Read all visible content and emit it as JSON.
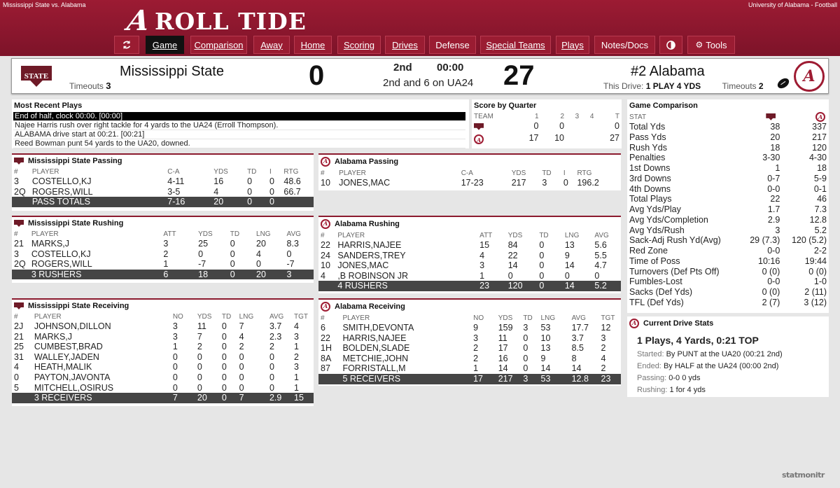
{
  "header": {
    "left_title": "Mississippi State vs. Alabama",
    "right_title": "University of Alabama - Football",
    "brand_logo": "A",
    "brand_text": "ROLL TIDE"
  },
  "nav": {
    "refresh_icon": "refresh-icon",
    "items": [
      "Game",
      "Comparison",
      "Away",
      "Home",
      "Scoring",
      "Drives",
      "Defense",
      "Special Teams",
      "Plays",
      "Notes/Docs"
    ],
    "theme_icon": "contrast-icon",
    "tools_label": "Tools",
    "active": "Game"
  },
  "scoreboard": {
    "away": {
      "name": "Mississippi State",
      "logo": "STATE",
      "timeouts_label": "Timeouts",
      "timeouts": "3",
      "score": "0"
    },
    "home": {
      "name": "#2 Alabama",
      "logo": "A",
      "timeouts_label": "Timeouts",
      "timeouts": "2",
      "score": "27"
    },
    "quarter": "2nd",
    "clock": "00:00",
    "down_distance": "2nd and 6 on UA24",
    "this_drive_label": "This Drive:",
    "this_drive": "1 PLAY 4 YDS",
    "possession_icon": "football-icon"
  },
  "recent_plays": {
    "title": "Most Recent Plays",
    "items": [
      "End of half, clock 00:00. [00:00]",
      "Najee Harris rush over right tackle for 4 yards to the UA24 (Erroll Thompson).",
      "ALABAMA drive start at 00:21. [00:21]",
      "Reed Bowman punt 54 yards to the UA20, downed."
    ]
  },
  "score_by_quarter": {
    "title": "Score by Quarter",
    "headers": [
      "TEAM",
      "1",
      "2",
      "3",
      "4",
      "T"
    ],
    "rows": [
      {
        "team_icon": "msstate-logo",
        "q": [
          "0",
          "0",
          "",
          ""
        ],
        "t": "0"
      },
      {
        "team_icon": "alabama-logo",
        "q": [
          "17",
          "10",
          "",
          ""
        ],
        "t": "27"
      }
    ]
  },
  "game_comparison": {
    "title": "Game Comparison",
    "stat_header": "STAT",
    "rows": [
      [
        "Total Yds",
        "38",
        "337"
      ],
      [
        "Pass Yds",
        "20",
        "217"
      ],
      [
        "Rush Yds",
        "18",
        "120"
      ],
      [
        "Penalties",
        "3-30",
        "4-30"
      ],
      [
        "1st Downs",
        "1",
        "18"
      ],
      [
        "3rd Downs",
        "0-7",
        "5-9"
      ],
      [
        "4th Downs",
        "0-0",
        "0-1"
      ],
      [
        "Total Plays",
        "22",
        "46"
      ],
      [
        "Avg Yds/Play",
        "1.7",
        "7.3"
      ],
      [
        "Avg Yds/Completion",
        "2.9",
        "12.8"
      ],
      [
        "Avg Yds/Rush",
        "3",
        "5.2"
      ],
      [
        "Sack-Adj Rush Yd(Avg)",
        "29 (7.3)",
        "120 (5.2)"
      ],
      [
        "Red Zone",
        "0-0",
        "2-2"
      ],
      [
        "Time of Poss",
        "10:16",
        "19:44"
      ],
      [
        "Turnovers (Def Pts Off)",
        "0 (0)",
        "0 (0)"
      ],
      [
        "Fumbles-Lost",
        "0-0",
        "1-0"
      ],
      [
        "Sacks (Def Yds)",
        "0 (0)",
        "2 (11)"
      ],
      [
        "TFL (Def Yds)",
        "2 (7)",
        "3 (12)"
      ]
    ]
  },
  "current_drive": {
    "title": "Current Drive Stats",
    "headline": "1 Plays, 4 Yards, 0:21 TOP",
    "lines": [
      {
        "label": "Started:",
        "value": "By PUNT at the UA20 (00:21 2nd)"
      },
      {
        "label": "Ended:",
        "value": "By HALF at the UA24 (00:00 2nd)"
      },
      {
        "label": "Passing:",
        "value": "0-0 0 yds"
      },
      {
        "label": "Rushing:",
        "value": "1 for 4 yds"
      }
    ]
  },
  "ms_passing": {
    "title": "Mississippi State Passing",
    "headers": [
      "#",
      "PLAYER",
      "C-A",
      "YDS",
      "TD",
      "I",
      "RTG"
    ],
    "rows": [
      [
        "3",
        "COSTELLO,KJ",
        "4-11",
        "16",
        "0",
        "0",
        "48.6"
      ],
      [
        "2Q",
        "ROGERS,WILL",
        "3-5",
        "4",
        "0",
        "0",
        "66.7"
      ]
    ],
    "total": [
      "",
      "PASS TOTALS",
      "7-16",
      "20",
      "0",
      "0",
      ""
    ]
  },
  "ua_passing": {
    "title": "Alabama Passing",
    "headers": [
      "#",
      "PLAYER",
      "C-A",
      "YDS",
      "TD",
      "I",
      "RTG"
    ],
    "rows": [
      [
        "10",
        "JONES,MAC",
        "17-23",
        "217",
        "3",
        "0",
        "196.2"
      ]
    ]
  },
  "ms_rushing": {
    "title": "Mississippi State Rushing",
    "headers": [
      "#",
      "PLAYER",
      "ATT",
      "YDS",
      "TD",
      "LNG",
      "AVG"
    ],
    "rows": [
      [
        "21",
        "MARKS,J",
        "3",
        "25",
        "0",
        "20",
        "8.3"
      ],
      [
        "3",
        "COSTELLO,KJ",
        "2",
        "0",
        "0",
        "4",
        "0"
      ],
      [
        "2Q",
        "ROGERS,WILL",
        "1",
        "-7",
        "0",
        "0",
        "-7"
      ]
    ],
    "total": [
      "",
      "3 RUSHERS",
      "6",
      "18",
      "0",
      "20",
      "3"
    ]
  },
  "ua_rushing": {
    "title": "Alabama Rushing",
    "headers": [
      "#",
      "PLAYER",
      "ATT",
      "YDS",
      "TD",
      "LNG",
      "AVG"
    ],
    "rows": [
      [
        "22",
        "HARRIS,NAJEE",
        "15",
        "84",
        "0",
        "13",
        "5.6"
      ],
      [
        "24",
        "SANDERS,TREY",
        "4",
        "22",
        "0",
        "9",
        "5.5"
      ],
      [
        "10",
        "JONES,MAC",
        "3",
        "14",
        "0",
        "14",
        "4.7"
      ],
      [
        "4",
        ",B ROBINSON JR",
        "1",
        "0",
        "0",
        "0",
        "0"
      ]
    ],
    "total": [
      "",
      "4 RUSHERS",
      "23",
      "120",
      "0",
      "14",
      "5.2"
    ]
  },
  "ms_receiving": {
    "title": "Mississippi State Receiving",
    "headers": [
      "#",
      "PLAYER",
      "NO",
      "YDS",
      "TD",
      "LNG",
      "AVG",
      "TGT"
    ],
    "rows": [
      [
        "2J",
        "JOHNSON,DILLON",
        "3",
        "11",
        "0",
        "7",
        "3.7",
        "4"
      ],
      [
        "21",
        "MARKS,J",
        "3",
        "7",
        "0",
        "4",
        "2.3",
        "3"
      ],
      [
        "25",
        "CUMBEST,BRAD",
        "1",
        "2",
        "0",
        "2",
        "2",
        "1"
      ],
      [
        "31",
        "WALLEY,JADEN",
        "0",
        "0",
        "0",
        "0",
        "0",
        "2"
      ],
      [
        "4",
        "HEATH,MALIK",
        "0",
        "0",
        "0",
        "0",
        "0",
        "3"
      ],
      [
        "0",
        "PAYTON,JAVONTA",
        "0",
        "0",
        "0",
        "0",
        "0",
        "1"
      ],
      [
        "5",
        "MITCHELL,OSIRUS",
        "0",
        "0",
        "0",
        "0",
        "0",
        "1"
      ]
    ],
    "total": [
      "",
      "3 RECEIVERS",
      "7",
      "20",
      "0",
      "7",
      "2.9",
      "15"
    ]
  },
  "ua_receiving": {
    "title": "Alabama Receiving",
    "headers": [
      "#",
      "PLAYER",
      "NO",
      "YDS",
      "TD",
      "LNG",
      "AVG",
      "TGT"
    ],
    "rows": [
      [
        "6",
        "SMITH,DEVONTA",
        "9",
        "159",
        "3",
        "53",
        "17.7",
        "12"
      ],
      [
        "22",
        "HARRIS,NAJEE",
        "3",
        "11",
        "0",
        "10",
        "3.7",
        "3"
      ],
      [
        "1H",
        "BOLDEN,SLADE",
        "2",
        "17",
        "0",
        "13",
        "8.5",
        "2"
      ],
      [
        "8A",
        "METCHIE,JOHN",
        "2",
        "16",
        "0",
        "9",
        "8",
        "4"
      ],
      [
        "87",
        "FORRISTALL,M",
        "1",
        "14",
        "0",
        "14",
        "14",
        "2"
      ]
    ],
    "total": [
      "",
      "5 RECEIVERS",
      "17",
      "217",
      "3",
      "53",
      "12.8",
      "23"
    ]
  },
  "watermark": "statmonitr",
  "colors": {
    "crimson": "#9e1b32",
    "maroon": "#6e1a27",
    "dark_row": "#454545"
  }
}
